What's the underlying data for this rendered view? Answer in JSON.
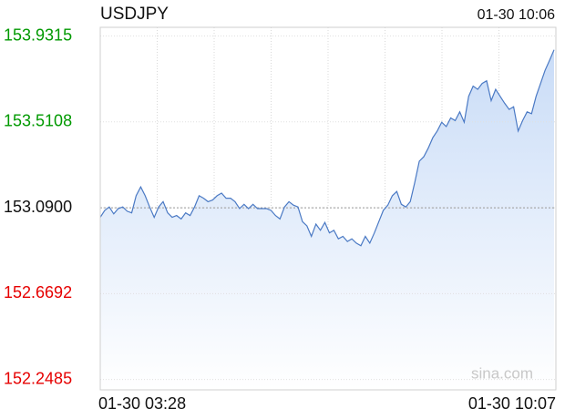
{
  "chart_data": {
    "type": "line",
    "title": "USDJPY",
    "timestamp": "01-30 10:06",
    "watermark": "sina.com",
    "categories": [
      "01-30 03:28",
      null,
      null,
      null,
      null,
      null,
      null,
      null,
      null,
      null,
      null,
      null,
      null,
      null,
      null,
      null,
      null,
      null,
      null,
      null,
      null,
      null,
      null,
      null,
      null,
      null,
      null,
      null,
      null,
      null,
      null,
      null,
      null,
      null,
      null,
      null,
      null,
      null,
      null,
      null,
      null,
      null,
      null,
      null,
      null,
      null,
      null,
      null,
      null,
      null,
      null,
      null,
      null,
      null,
      null,
      null,
      null,
      null,
      null,
      null,
      null,
      null,
      null,
      null,
      null,
      null,
      null,
      null,
      null,
      null,
      null,
      null,
      null,
      null,
      null,
      null,
      null,
      null,
      null,
      null,
      null,
      null,
      null,
      null,
      null,
      null,
      null,
      null,
      null,
      null,
      null,
      null,
      null,
      null,
      null,
      null,
      null,
      null,
      null,
      null,
      null,
      "01-30 10:07"
    ],
    "series": [
      {
        "name": "USDJPY",
        "color": "#4a79c4",
        "values": [
          153.043,
          153.077,
          153.094,
          153.06,
          153.086,
          153.094,
          153.073,
          153.065,
          153.149,
          153.192,
          153.149,
          153.094,
          153.043,
          153.094,
          153.12,
          153.065,
          153.043,
          153.052,
          153.035,
          153.065,
          153.052,
          153.094,
          153.149,
          153.137,
          153.12,
          153.128,
          153.149,
          153.162,
          153.137,
          153.137,
          153.12,
          153.086,
          153.107,
          153.086,
          153.107,
          153.086,
          153.086,
          153.086,
          153.077,
          153.052,
          153.035,
          153.094,
          153.12,
          153.103,
          153.094,
          153.022,
          153.001,
          152.95,
          153.01,
          152.98,
          153.018,
          152.967,
          152.98,
          152.938,
          152.95,
          152.925,
          152.938,
          152.917,
          152.904,
          152.95,
          152.917,
          152.967,
          153.022,
          153.077,
          153.103,
          153.149,
          153.17,
          153.107,
          153.094,
          153.12,
          153.213,
          153.318,
          153.34,
          153.382,
          153.433,
          153.466,
          153.509,
          153.488,
          153.53,
          153.517,
          153.56,
          153.509,
          153.636,
          153.686,
          153.67,
          153.699,
          153.712,
          153.615,
          153.67,
          153.636,
          153.602,
          153.572,
          153.585,
          153.466,
          153.517,
          153.56,
          153.551,
          153.636,
          153.699,
          153.763,
          153.813,
          153.864
        ]
      }
    ],
    "ylim": [
      152.198,
      153.974
    ],
    "yticks": [
      152.2485,
      152.6692,
      {
        "value": 153.09,
        "label": "153.0900"
      },
      153.5108,
      153.9315
    ],
    "baseline": 153.09,
    "up_color": "#009900",
    "down_color": "#e60000",
    "grid": true
  }
}
